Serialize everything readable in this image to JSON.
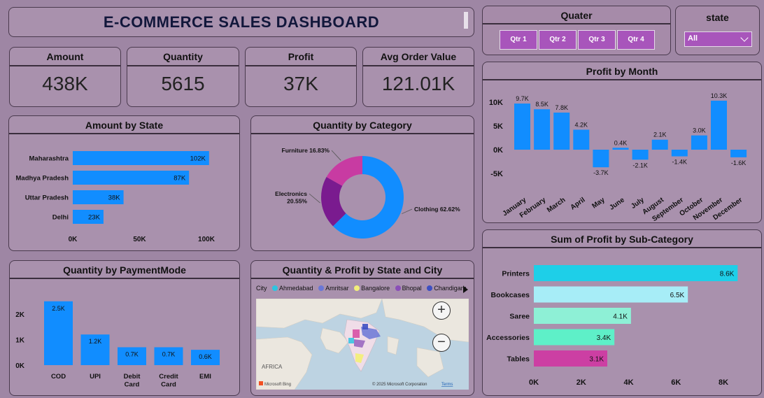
{
  "title": "E-COMMERCE SALES DASHBOARD",
  "kpis": [
    {
      "label": "Amount",
      "value": "438K"
    },
    {
      "label": "Quantity",
      "value": "5615"
    },
    {
      "label": "Profit",
      "value": "37K"
    },
    {
      "label": "Avg Order Value",
      "value": "121.01K"
    }
  ],
  "quarter_filter": {
    "label": "Quater",
    "options": [
      "Qtr 1",
      "Qtr 2",
      "Qtr 3",
      "Qtr 4"
    ]
  },
  "state_filter": {
    "label": "state",
    "selected": "All"
  },
  "map_card": {
    "title": "Quantity & Profit by State and City",
    "legend_label": "City",
    "cities": [
      {
        "name": "Ahmedabad",
        "color": "#2ec4e0"
      },
      {
        "name": "Amritsar",
        "color": "#6a77d6"
      },
      {
        "name": "Bangalore",
        "color": "#f2ee7a"
      },
      {
        "name": "Bhopal",
        "color": "#8a4fb8"
      },
      {
        "name": "Chandigarh",
        "color": "#3d4fc2"
      }
    ],
    "africa_label": "AFRICA",
    "logo_text": "Microsoft Bing",
    "copyright": "© 2025 Microsoft Corporation",
    "terms": "Terms",
    "zoom_in": "+",
    "zoom_out": "−"
  },
  "chart_data": [
    {
      "id": "amount_by_state",
      "type": "bar",
      "orientation": "horizontal",
      "title": "Amount by State",
      "categories": [
        "Maharashtra",
        "Madhya Pradesh",
        "Uttar Pradesh",
        "Delhi"
      ],
      "values": [
        102,
        87,
        38,
        23
      ],
      "data_labels": [
        "102K",
        "87K",
        "38K",
        "23K"
      ],
      "xticks": [
        "0K",
        "50K",
        "100K"
      ],
      "xlim": [
        0,
        100
      ],
      "color": "#118dff"
    },
    {
      "id": "quantity_by_category",
      "type": "pie",
      "donut": true,
      "title": "Quantity by Category",
      "categories": [
        "Clothing",
        "Electronics",
        "Furniture"
      ],
      "values": [
        62.62,
        20.55,
        16.83
      ],
      "labels": [
        "Clothing 62.62%",
        "Electronics\n20.55%",
        "Furniture 16.83%"
      ],
      "colors": [
        "#118dff",
        "#7a1b8f",
        "#c83ba2"
      ]
    },
    {
      "id": "profit_by_month",
      "type": "bar",
      "title": "Profit by Month",
      "categories": [
        "January",
        "February",
        "March",
        "April",
        "May",
        "June",
        "July",
        "August",
        "September",
        "October",
        "November",
        "December"
      ],
      "values": [
        9.7,
        8.5,
        7.8,
        4.2,
        -3.7,
        0.4,
        -2.1,
        2.1,
        -1.4,
        3.0,
        10.3,
        -1.6
      ],
      "data_labels": [
        "9.7K",
        "8.5K",
        "7.8K",
        "4.2K",
        "-3.7K",
        "0.4K",
        "-2.1K",
        "2.1K",
        "-1.4K",
        "3.0K",
        "10.3K",
        "-1.6K"
      ],
      "yticks": [
        "10K",
        "5K",
        "0K",
        "-5K"
      ],
      "ylim": [
        -5,
        10
      ],
      "color": "#118dff"
    },
    {
      "id": "quantity_by_paymentmode",
      "type": "bar",
      "title": "Quantity by PaymentMode",
      "categories": [
        "COD",
        "UPI",
        "Debit\nCard",
        "Credit\nCard",
        "EMI"
      ],
      "values": [
        2.5,
        1.2,
        0.7,
        0.7,
        0.6
      ],
      "data_labels": [
        "2.5K",
        "1.2K",
        "0.7K",
        "0.7K",
        "0.6K"
      ],
      "yticks": [
        "2K",
        "1K",
        "0K"
      ],
      "ylim": [
        0,
        2
      ],
      "color": "#118dff"
    },
    {
      "id": "profit_by_subcategory",
      "type": "bar",
      "orientation": "horizontal",
      "title": "Sum of Profit by Sub-Category",
      "categories": [
        "Printers",
        "Bookcases",
        "Saree",
        "Accessories",
        "Tables"
      ],
      "values": [
        8.6,
        6.5,
        4.1,
        3.4,
        3.1
      ],
      "data_labels": [
        "8.6K",
        "6.5K",
        "4.1K",
        "3.4K",
        "3.1K"
      ],
      "xticks": [
        "0K",
        "2K",
        "4K",
        "6K",
        "8K"
      ],
      "xlim": [
        0,
        8
      ],
      "colors": [
        "#1ecfe8",
        "#a7edf7",
        "#8ef0d6",
        "#5ef0c8",
        "#cc3fa3"
      ]
    }
  ]
}
